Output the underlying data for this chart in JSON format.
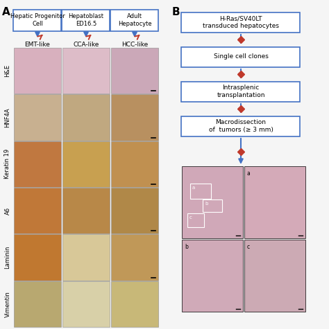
{
  "panel_A_label": "A",
  "panel_B_label": "B",
  "header_boxes": [
    "Hepatic Progenitor\nCell",
    "Hepatoblast\nED16.5",
    "Adult\nHepatocyte"
  ],
  "col_labels": [
    "EMT-like",
    "CCA-like",
    "HCC-like"
  ],
  "row_labels": [
    "H&E",
    "HNF4A",
    "Keratin 19",
    "A6",
    "Laminin",
    "Vimentin"
  ],
  "flowchart_steps": [
    "H-Ras/SV40LT\ntransduced hepatocytes",
    "Single cell clones",
    "Intrasplenic\ntransplantation",
    "Macrodissection\nof  tumors (≥ 3 mm)"
  ],
  "box_border_color": "#4472c4",
  "arrow_blue": "#4472c4",
  "arrow_red": "#c0392b",
  "background": "#f5f5f5",
  "micro_image_colors": {
    "H&E_emt": "#d8b0be",
    "H&E_cca": "#ddbcc8",
    "H&E_hcc": "#cba8b8",
    "HNF4A_emt": "#c8b090",
    "HNF4A_cca": "#c0a880",
    "HNF4A_hcc": "#b89060",
    "Keratin19_emt": "#c07840",
    "Keratin19_cca": "#c8a050",
    "Keratin19_hcc": "#c09050",
    "A6_emt": "#c07838",
    "A6_cca": "#b88848",
    "A6_hcc": "#b08848",
    "Laminin_emt": "#c07830",
    "Laminin_cca": "#d8c898",
    "Laminin_hcc": "#c09858",
    "Vimentin_emt": "#b8a870",
    "Vimentin_cca": "#d8d0a8",
    "Vimentin_hcc": "#c8b878"
  },
  "bottom_img_main": "#d0a8b8",
  "bottom_img_a": "#d4aab8",
  "bottom_img_b": "#d0aab8",
  "bottom_img_c": "#ccaab4",
  "label_fontsize": 6.5,
  "header_fontsize": 6.0,
  "flow_fontsize": 6.5,
  "panel_label_fontsize": 11
}
